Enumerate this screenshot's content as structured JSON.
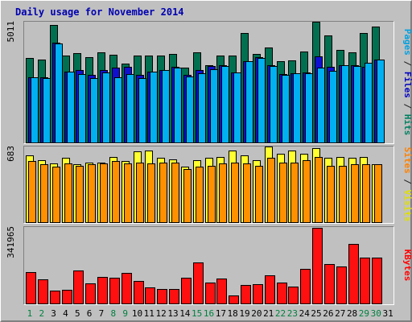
{
  "chart_data": {
    "type": "bar",
    "title": "Daily usage for November 2014",
    "categories": [
      "1",
      "2",
      "3",
      "4",
      "5",
      "6",
      "7",
      "8",
      "9",
      "10",
      "11",
      "12",
      "13",
      "14",
      "15",
      "16",
      "17",
      "18",
      "19",
      "20",
      "21",
      "22",
      "23",
      "24",
      "25",
      "26",
      "27",
      "28",
      "29",
      "30",
      "31"
    ],
    "weekend_days": [
      1,
      2,
      8,
      9,
      15,
      16,
      22,
      23,
      29,
      30
    ],
    "panels": [
      {
        "name": "hits-files-pages",
        "max_label": "5011",
        "ylim": [
          0,
          5011
        ],
        "side_label": [
          {
            "text": "Pages",
            "color": "#00a0e0"
          },
          {
            "text": " / ",
            "color": "#202020"
          },
          {
            "text": "Files",
            "color": "#0000c0"
          },
          {
            "text": " / ",
            "color": "#202020"
          },
          {
            "text": "Hits",
            "color": "#008060"
          }
        ],
        "series": [
          {
            "name": "Hits",
            "color": "#007050",
            "values": [
              3500,
              3450,
              4870,
              3600,
              3720,
              3550,
              3730,
              3630,
              3280,
              3600,
              3600,
              3600,
              3680,
              3100,
              3740,
              3220,
              3620,
              3600,
              4550,
              3690,
              3940,
              3390,
              3420,
              3780,
              5010,
              4440,
              3850,
              3750,
              4560,
              4820,
              0
            ]
          },
          {
            "name": "Files",
            "color": "#1010d0",
            "values": [
              2700,
              2700,
              4150,
              2950,
              3000,
              2800,
              3000,
              3120,
              3150,
              2800,
              2950,
              3000,
              3150,
              2800,
              3020,
              3160,
              3200,
              2890,
              3380,
              3550,
              3200,
              2850,
              2860,
              2900,
              3580,
              3140,
              3200,
              3200,
              3150,
              3450,
              0
            ]
          },
          {
            "name": "Pages",
            "color": "#00b0f0",
            "values": [
              2700,
              2680,
              4100,
              2950,
              2850,
              2680,
              2900,
              2700,
              2850,
              2680,
              2930,
              3000,
              3120,
              2750,
              2880,
              3050,
              3170,
              2890,
              3360,
              3500,
              3180,
              2800,
              2860,
              2880,
              3100,
              2980,
              3200,
              3180,
              3300,
              3450,
              0
            ]
          }
        ]
      },
      {
        "name": "visits-sites",
        "max_label": "683",
        "ylim": [
          0,
          683
        ],
        "side_label": [
          {
            "text": "Sites",
            "color": "#ff8000"
          },
          {
            "text": " / ",
            "color": "#202020"
          },
          {
            "text": "Visits",
            "color": "#e0e000"
          }
        ],
        "series": [
          {
            "name": "Visits",
            "color": "#ffff30",
            "values": [
              600,
              560,
              530,
              580,
              520,
              540,
              540,
              590,
              550,
              640,
              650,
              580,
              570,
              500,
              560,
              580,
              590,
              650,
              600,
              560,
              680,
              620,
              650,
              620,
              670,
              580,
              590,
              580,
              590,
              520,
              0
            ]
          },
          {
            "name": "Sites",
            "color": "#ff9000",
            "values": [
              550,
              520,
              500,
              530,
              510,
              520,
              530,
              550,
              530,
              540,
              530,
              540,
              540,
              480,
              500,
              510,
              530,
              540,
              530,
              510,
              580,
              540,
              540,
              560,
              590,
              510,
              510,
              520,
              520,
              520,
              0
            ]
          }
        ]
      },
      {
        "name": "kbytes",
        "max_label": "341965",
        "ylim": [
          0,
          341965
        ],
        "side_label": [
          {
            "text": "KBytes",
            "color": "#ff0000"
          }
        ],
        "series": [
          {
            "name": "KBytes",
            "color": "#ff1010",
            "values": [
              140000,
              107000,
              58000,
              62000,
              148000,
              90000,
              120000,
              114000,
              137000,
              100000,
              72000,
              65000,
              66000,
              115000,
              182000,
              93000,
              112000,
              37000,
              84000,
              88000,
              126000,
              92000,
              76000,
              155000,
              340000,
              178000,
              166000,
              268000,
              205000,
              205000,
              0
            ]
          }
        ]
      }
    ]
  }
}
